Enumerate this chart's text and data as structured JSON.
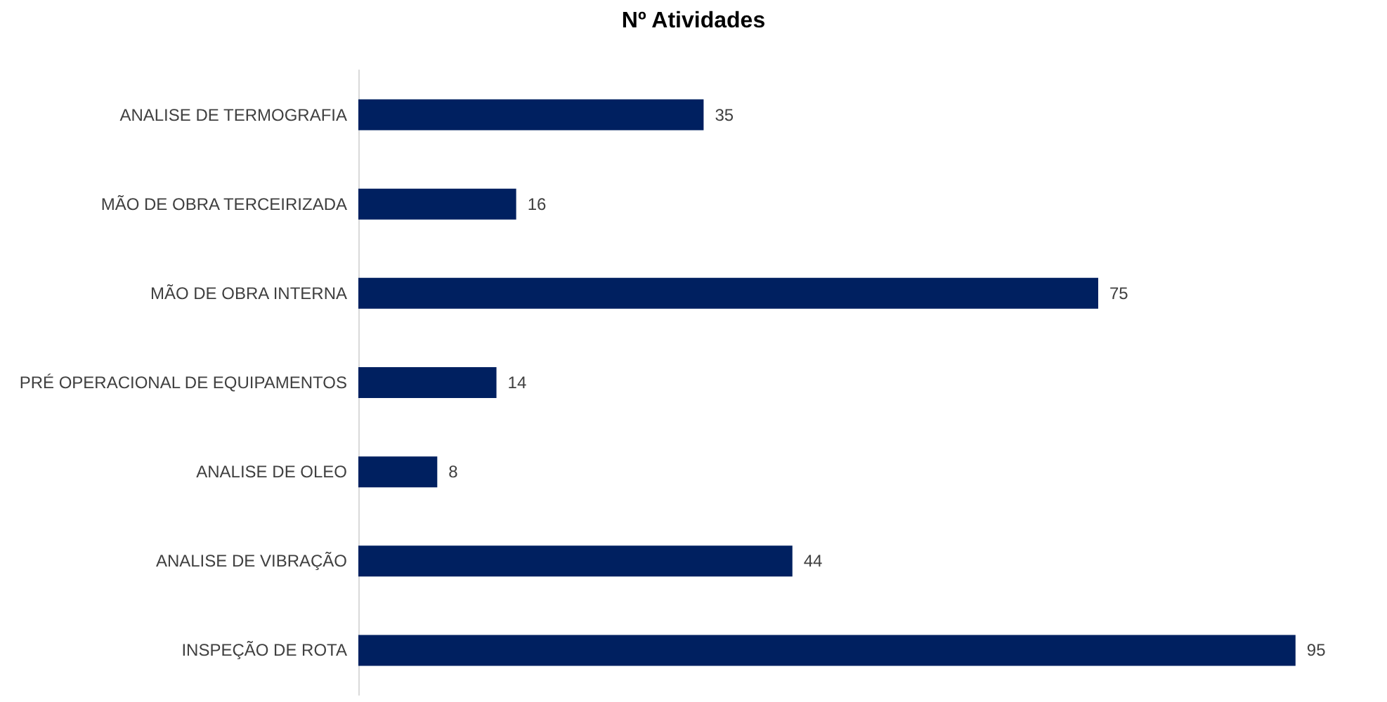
{
  "chart_data": {
    "type": "bar",
    "title": "Nº Atividades",
    "orientation": "horizontal",
    "categories": [
      "ANALISE DE TERMOGRAFIA",
      "MÃO DE OBRA TERCEIRIZADA",
      "MÃO DE OBRA INTERNA",
      "PRÉ OPERACIONAL DE EQUIPAMENTOS",
      "ANALISE DE OLEO",
      "ANALISE DE VIBRAÇÃO",
      "INSPEÇÃO DE ROTA"
    ],
    "values": [
      35,
      16,
      75,
      14,
      8,
      44,
      95
    ],
    "color": "#002060",
    "data_labels": true
  }
}
